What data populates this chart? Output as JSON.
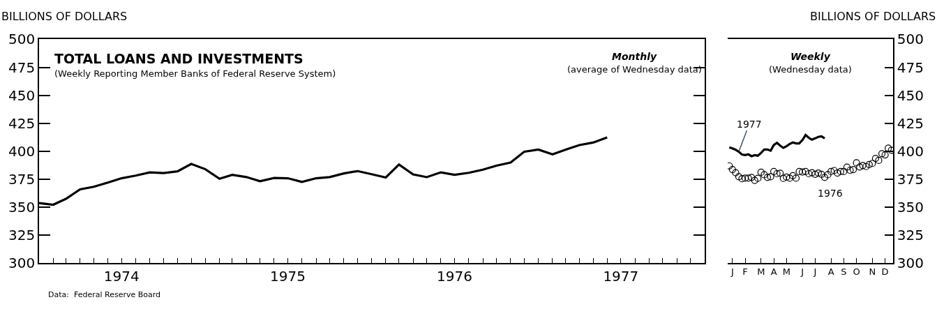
{
  "chart_data": [
    {
      "type": "line",
      "title": "TOTAL LOANS AND INVESTMENTS",
      "subtitle": "(Weekly Reporting Member Banks of Federal Reserve System)",
      "ylabel": "BILLIONS OF DOLLARS",
      "annotations": [
        "Monthly",
        "(average of Wednesday data)",
        "Data:  Federal Reserve Board"
      ],
      "x": [
        "1974-01",
        "1974-02",
        "1974-03",
        "1974-04",
        "1974-05",
        "1974-06",
        "1974-07",
        "1974-08",
        "1974-09",
        "1974-10",
        "1974-11",
        "1974-12",
        "1975-01",
        "1975-02",
        "1975-03",
        "1975-04",
        "1975-05",
        "1975-06",
        "1975-07",
        "1975-08",
        "1975-09",
        "1975-10",
        "1975-11",
        "1975-12",
        "1976-01",
        "1976-02",
        "1976-03",
        "1976-04",
        "1976-05",
        "1976-06",
        "1976-07",
        "1976-08",
        "1976-09",
        "1976-10",
        "1976-11",
        "1976-12",
        "1977-01",
        "1977-02",
        "1977-03",
        "1977-04",
        "1977-05",
        "1977-06"
      ],
      "series": [
        {
          "color": "#000000",
          "values": [
            353.6,
            352.1,
            357.4,
            365.9,
            368.2,
            372,
            375.8,
            378.2,
            381.1,
            380.5,
            382,
            388.6,
            383.9,
            375.4,
            378.8,
            376.9,
            373.1,
            376.1,
            375.8,
            372.5,
            375.8,
            376.9,
            380.1,
            382.2,
            379.4,
            376.5,
            388.1,
            379.2,
            376.8,
            381.1,
            378.9,
            380.7,
            383.5,
            387.1,
            389.9,
            399.6,
            401.5,
            397.2,
            401.3,
            405.5,
            407.7,
            412.3
          ]
        }
      ],
      "xlim": [
        "1974-01-01",
        "1978-01-01"
      ],
      "xticks": [
        {
          "value": "1974-01-01",
          "label": null
        },
        {
          "value": "1974-02-01",
          "label": null
        },
        {
          "value": "1974-03-01",
          "label": null
        },
        {
          "value": "1974-04-01",
          "label": null
        },
        {
          "value": "1974-05-01",
          "label": null
        },
        {
          "value": "1974-06-01",
          "label": null
        },
        {
          "value": "1974-07-01",
          "label": "1974"
        },
        {
          "value": "1974-08-01",
          "label": null
        },
        {
          "value": "1974-09-01",
          "label": null
        },
        {
          "value": "1974-10-01",
          "label": null
        },
        {
          "value": "1974-11-01",
          "label": null
        },
        {
          "value": "1974-12-01",
          "label": null
        },
        {
          "value": "1975-01-01",
          "label": null
        },
        {
          "value": "1975-02-01",
          "label": null
        },
        {
          "value": "1975-03-01",
          "label": null
        },
        {
          "value": "1975-04-01",
          "label": null
        },
        {
          "value": "1975-05-01",
          "label": null
        },
        {
          "value": "1975-06-01",
          "label": null
        },
        {
          "value": "1975-07-01",
          "label": "1975"
        },
        {
          "value": "1975-08-01",
          "label": null
        },
        {
          "value": "1975-09-01",
          "label": null
        },
        {
          "value": "1975-10-01",
          "label": null
        },
        {
          "value": "1975-11-01",
          "label": null
        },
        {
          "value": "1975-12-01",
          "label": null
        },
        {
          "value": "1976-01-01",
          "label": null
        },
        {
          "value": "1976-02-01",
          "label": null
        },
        {
          "value": "1976-03-01",
          "label": null
        },
        {
          "value": "1976-04-01",
          "label": null
        },
        {
          "value": "1976-05-01",
          "label": null
        },
        {
          "value": "1976-06-01",
          "label": null
        },
        {
          "value": "1976-07-01",
          "label": "1976"
        },
        {
          "value": "1976-08-01",
          "label": null
        },
        {
          "value": "1976-09-01",
          "label": null
        },
        {
          "value": "1976-10-01",
          "label": null
        },
        {
          "value": "1976-11-01",
          "label": null
        },
        {
          "value": "1976-12-01",
          "label": null
        },
        {
          "value": "1977-01-01",
          "label": null
        },
        {
          "value": "1977-02-01",
          "label": null
        },
        {
          "value": "1977-03-01",
          "label": null
        },
        {
          "value": "1977-04-01",
          "label": null
        },
        {
          "value": "1977-05-01",
          "label": null
        },
        {
          "value": "1977-06-01",
          "label": null
        },
        {
          "value": "1977-07-01",
          "label": "1977"
        },
        {
          "value": "1977-08-01",
          "label": null
        },
        {
          "value": "1977-09-01",
          "label": null
        },
        {
          "value": "1977-10-01",
          "label": null
        },
        {
          "value": "1977-11-01",
          "label": null
        },
        {
          "value": "1977-12-01",
          "label": null
        }
      ],
      "ylim": [
        300,
        500
      ],
      "yticks": [
        300,
        325,
        350,
        375,
        400,
        425,
        450,
        475,
        500
      ]
    },
    {
      "type": "line",
      "title": "Weekly",
      "subtitle": "(Wednesday data)",
      "y2label": "BILLIONS OF DOLLARS",
      "categories": [
        null,
        "J",
        null,
        null,
        null,
        "F",
        null,
        null,
        null,
        null,
        "M",
        null,
        null,
        null,
        "A",
        null,
        null,
        null,
        "M",
        null,
        null,
        null,
        null,
        "J",
        null,
        null,
        null,
        "J",
        null,
        null,
        null,
        null,
        "A",
        null,
        null,
        null,
        "S",
        null,
        null,
        null,
        "O",
        null,
        null,
        null,
        null,
        "N",
        null,
        null,
        null,
        "D",
        null,
        null
      ],
      "series": [
        {
          "name": "1977",
          "type": "line",
          "axis": "y2",
          "color": "#000000",
          "values": [
            403.5,
            402.5,
            401.3,
            399.5,
            397,
            396.5,
            397.2,
            395.5,
            396.5,
            396,
            398.5,
            401.5,
            401.5,
            400.5,
            405.5,
            407.5,
            405,
            403,
            404.5,
            406.5,
            407.8,
            407,
            407,
            410,
            414.5,
            412,
            410.3,
            411.5,
            412.8,
            413.3,
            411.5,
            null,
            null,
            null,
            null,
            null,
            null,
            null,
            null,
            null,
            null,
            null,
            null,
            null,
            null,
            null,
            null,
            null,
            null,
            null,
            null,
            null
          ]
        },
        {
          "name": "1976",
          "type": "scatter",
          "axis": "y2",
          "color": "#000000",
          "marker": "circle",
          "values": [
            386.9,
            383.6,
            380.8,
            377.2,
            375.4,
            375.9,
            375.9,
            376.6,
            373.9,
            375.7,
            381.2,
            379,
            376.6,
            377.2,
            381.8,
            379.9,
            380.3,
            375.7,
            376.8,
            375.9,
            378.1,
            375.9,
            381.8,
            381.4,
            381.8,
            379.9,
            380.8,
            379.4,
            380.5,
            379.4,
            376.6,
            379,
            381.8,
            382.7,
            380.5,
            381.8,
            381.8,
            385.8,
            383,
            383.6,
            389.6,
            385.9,
            387.2,
            386.3,
            388.1,
            389.1,
            393.6,
            391.8,
            397.8,
            396.7,
            402.7,
            400.9
          ]
        }
      ],
      "y2lim": [
        300,
        500
      ],
      "y2ticks": [
        300,
        325,
        350,
        375,
        400,
        425,
        450,
        475,
        500
      ]
    }
  ]
}
